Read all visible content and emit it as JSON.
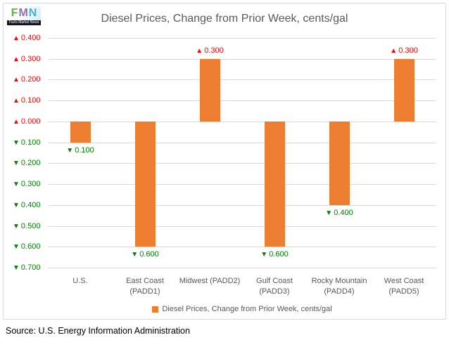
{
  "logo": {
    "letters": [
      {
        "char": "F",
        "color": "#5CB947"
      },
      {
        "char": "M",
        "color": "#8E6FB5"
      },
      {
        "char": "N",
        "color": "#3FB0D8"
      }
    ],
    "caption": "Fuels Market News"
  },
  "title": "Diesel Prices, Change from Prior Week, cents/gal",
  "chart_data": {
    "type": "bar",
    "title": "Diesel Prices, Change from Prior Week, cents/gal",
    "categories": [
      "U.S.",
      "East Coast (PADD1)",
      "Midwest (PADD2)",
      "Gulf Coast (PADD3)",
      "Rocky Mountain (PADD4)",
      "West Coast (PADD5)"
    ],
    "category_label_lines": [
      [
        "U.S."
      ],
      [
        "East Coast",
        "(PADD1)"
      ],
      [
        "Midwest (PADD2)"
      ],
      [
        "Gulf Coast",
        "(PADD3)"
      ],
      [
        "Rocky Mountain",
        "(PADD4)"
      ],
      [
        "West Coast",
        "(PADD5)"
      ]
    ],
    "values": [
      -0.1,
      -0.6,
      0.3,
      -0.6,
      -0.4,
      0.3
    ],
    "data_labels": [
      {
        "symbol": "▼",
        "text": "0.100"
      },
      {
        "symbol": "▼",
        "text": "0.600"
      },
      {
        "symbol": "▲",
        "text": "0.300"
      },
      {
        "symbol": "▼",
        "text": "0.600"
      },
      {
        "symbol": "▼",
        "text": "0.400"
      },
      {
        "symbol": "▲",
        "text": "0.300"
      }
    ],
    "yticks": [
      0.4,
      0.3,
      0.2,
      0.1,
      0.0,
      -0.1,
      -0.2,
      -0.3,
      -0.4,
      -0.5,
      -0.6,
      -0.7
    ],
    "ytick_labels": [
      {
        "symbol": "▲",
        "text": "0.400"
      },
      {
        "symbol": "▲",
        "text": "0.300"
      },
      {
        "symbol": "▲",
        "text": "0.200"
      },
      {
        "symbol": "▲",
        "text": "0.100"
      },
      {
        "symbol": "▲",
        "text": "0.000"
      },
      {
        "symbol": "▼",
        "text": "0.100"
      },
      {
        "symbol": "▼",
        "text": "0.200"
      },
      {
        "symbol": "▼",
        "text": "0.300"
      },
      {
        "symbol": "▼",
        "text": "0.400"
      },
      {
        "symbol": "▼",
        "text": "0.500"
      },
      {
        "symbol": "▼",
        "text": "0.600"
      },
      {
        "symbol": "▼",
        "text": "0.700"
      }
    ],
    "ylim": [
      -0.7,
      0.4
    ],
    "grid": true,
    "legend_position": "bottom",
    "xlabel": "",
    "ylabel": ""
  },
  "legend": {
    "label": "Diesel Prices, Change from Prior Week, cents/gal",
    "marker_color": "#ED7D31"
  },
  "source": "Source: U.S. Energy Information Administration",
  "colors": {
    "bar": "#ED7D31",
    "up": "#FF0000",
    "down": "#008000",
    "grid": "#D9D9D9",
    "border": "#D9D9D9",
    "text": "#595959",
    "source_text": "#000000"
  }
}
